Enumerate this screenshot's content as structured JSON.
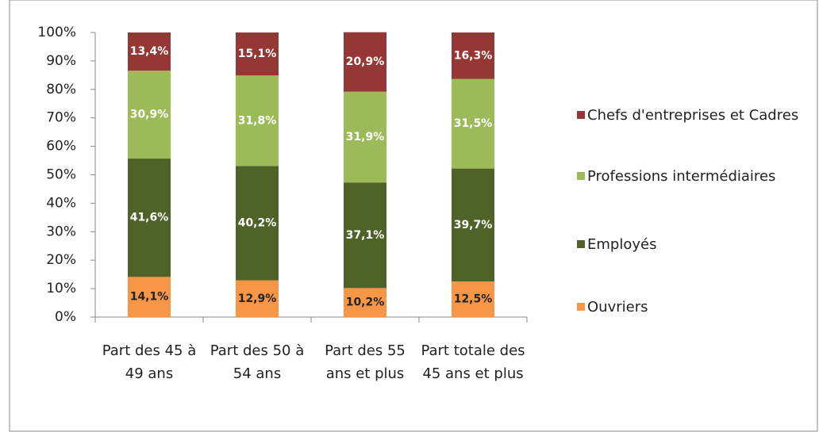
{
  "chart_data": {
    "type": "stacked_bar",
    "categories": [
      "Part des 45 à 49 ans",
      "Part des 50 à 54 ans",
      "Part des 55 ans et plus",
      "Part totale des 45 ans et plus"
    ],
    "series": [
      {
        "name": "Ouvriers",
        "color": "#f79646",
        "values": [
          14.1,
          12.9,
          10.2,
          12.5
        ],
        "value_labels": [
          "14,1%",
          "12,9%",
          "10,2%",
          "12,5%"
        ]
      },
      {
        "name": "Employés",
        "color": "#4f6228",
        "values": [
          41.6,
          40.2,
          37.1,
          39.7
        ],
        "value_labels": [
          "41,6%",
          "40,2%",
          "37,1%",
          "39,7%"
        ]
      },
      {
        "name": "Professions intermédiaires",
        "color": "#9bbb59",
        "values": [
          30.9,
          31.8,
          31.9,
          31.5
        ],
        "value_labels": [
          "30,9%",
          "31,8%",
          "31,9%",
          "31,5%"
        ]
      },
      {
        "name": "Chefs d'entreprises et Cadres",
        "color": "#953735",
        "values": [
          13.4,
          15.1,
          20.9,
          16.3
        ],
        "value_labels": [
          "13,4%",
          "15,1%",
          "20,9%",
          "16,3%"
        ]
      }
    ],
    "ylim": [
      0,
      100
    ],
    "yticks": [
      {
        "value": 0,
        "label": "0%"
      },
      {
        "value": 10,
        "label": "10%"
      },
      {
        "value": 20,
        "label": "20%"
      },
      {
        "value": 30,
        "label": "30%"
      },
      {
        "value": 40,
        "label": "40%"
      },
      {
        "value": 50,
        "label": "50%"
      },
      {
        "value": 60,
        "label": "60%"
      },
      {
        "value": 70,
        "label": "70%"
      },
      {
        "value": 80,
        "label": "80%"
      },
      {
        "value": 90,
        "label": "90%"
      },
      {
        "value": 100,
        "label": "100%"
      }
    ],
    "legend": "right"
  }
}
